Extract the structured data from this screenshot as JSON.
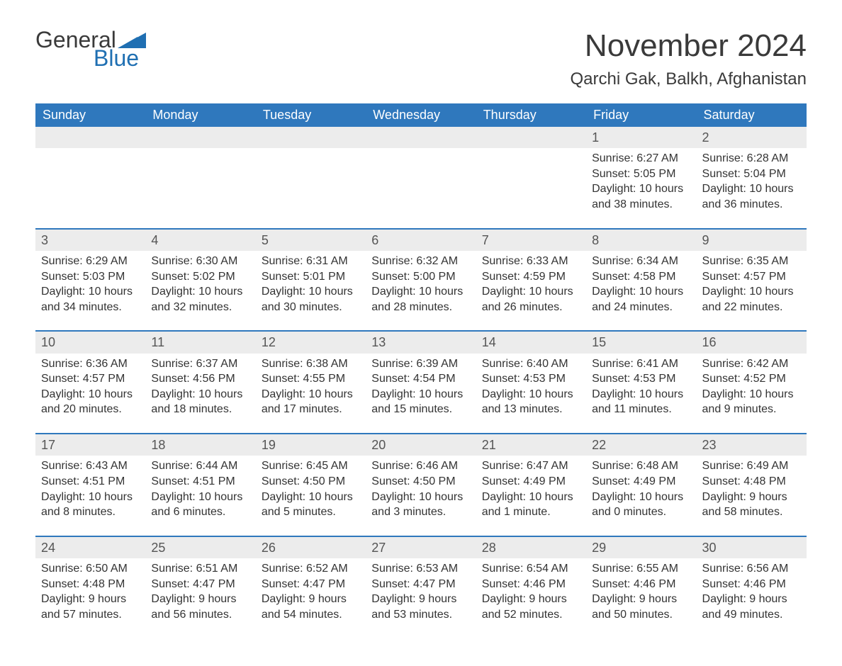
{
  "brand": {
    "part1": "General",
    "part2": "Blue",
    "flag_color": "#1f6fb2"
  },
  "title": "November 2024",
  "location": "Qarchi Gak, Balkh, Afghanistan",
  "colors": {
    "header_bg": "#2f78bd",
    "header_text": "#ffffff",
    "daynum_bg": "#ececec",
    "row_divider": "#2f78bd",
    "body_text": "#333333",
    "brand_blue": "#1f6fb2"
  },
  "typography": {
    "title_fontsize": 44,
    "location_fontsize": 24,
    "header_fontsize": 18,
    "cell_fontsize": 16
  },
  "weekdays": [
    "Sunday",
    "Monday",
    "Tuesday",
    "Wednesday",
    "Thursday",
    "Friday",
    "Saturday"
  ],
  "weeks": [
    [
      null,
      null,
      null,
      null,
      null,
      {
        "day": "1",
        "sunrise": "Sunrise: 6:27 AM",
        "sunset": "Sunset: 5:05 PM",
        "daylight1": "Daylight: 10 hours",
        "daylight2": "and 38 minutes."
      },
      {
        "day": "2",
        "sunrise": "Sunrise: 6:28 AM",
        "sunset": "Sunset: 5:04 PM",
        "daylight1": "Daylight: 10 hours",
        "daylight2": "and 36 minutes."
      }
    ],
    [
      {
        "day": "3",
        "sunrise": "Sunrise: 6:29 AM",
        "sunset": "Sunset: 5:03 PM",
        "daylight1": "Daylight: 10 hours",
        "daylight2": "and 34 minutes."
      },
      {
        "day": "4",
        "sunrise": "Sunrise: 6:30 AM",
        "sunset": "Sunset: 5:02 PM",
        "daylight1": "Daylight: 10 hours",
        "daylight2": "and 32 minutes."
      },
      {
        "day": "5",
        "sunrise": "Sunrise: 6:31 AM",
        "sunset": "Sunset: 5:01 PM",
        "daylight1": "Daylight: 10 hours",
        "daylight2": "and 30 minutes."
      },
      {
        "day": "6",
        "sunrise": "Sunrise: 6:32 AM",
        "sunset": "Sunset: 5:00 PM",
        "daylight1": "Daylight: 10 hours",
        "daylight2": "and 28 minutes."
      },
      {
        "day": "7",
        "sunrise": "Sunrise: 6:33 AM",
        "sunset": "Sunset: 4:59 PM",
        "daylight1": "Daylight: 10 hours",
        "daylight2": "and 26 minutes."
      },
      {
        "day": "8",
        "sunrise": "Sunrise: 6:34 AM",
        "sunset": "Sunset: 4:58 PM",
        "daylight1": "Daylight: 10 hours",
        "daylight2": "and 24 minutes."
      },
      {
        "day": "9",
        "sunrise": "Sunrise: 6:35 AM",
        "sunset": "Sunset: 4:57 PM",
        "daylight1": "Daylight: 10 hours",
        "daylight2": "and 22 minutes."
      }
    ],
    [
      {
        "day": "10",
        "sunrise": "Sunrise: 6:36 AM",
        "sunset": "Sunset: 4:57 PM",
        "daylight1": "Daylight: 10 hours",
        "daylight2": "and 20 minutes."
      },
      {
        "day": "11",
        "sunrise": "Sunrise: 6:37 AM",
        "sunset": "Sunset: 4:56 PM",
        "daylight1": "Daylight: 10 hours",
        "daylight2": "and 18 minutes."
      },
      {
        "day": "12",
        "sunrise": "Sunrise: 6:38 AM",
        "sunset": "Sunset: 4:55 PM",
        "daylight1": "Daylight: 10 hours",
        "daylight2": "and 17 minutes."
      },
      {
        "day": "13",
        "sunrise": "Sunrise: 6:39 AM",
        "sunset": "Sunset: 4:54 PM",
        "daylight1": "Daylight: 10 hours",
        "daylight2": "and 15 minutes."
      },
      {
        "day": "14",
        "sunrise": "Sunrise: 6:40 AM",
        "sunset": "Sunset: 4:53 PM",
        "daylight1": "Daylight: 10 hours",
        "daylight2": "and 13 minutes."
      },
      {
        "day": "15",
        "sunrise": "Sunrise: 6:41 AM",
        "sunset": "Sunset: 4:53 PM",
        "daylight1": "Daylight: 10 hours",
        "daylight2": "and 11 minutes."
      },
      {
        "day": "16",
        "sunrise": "Sunrise: 6:42 AM",
        "sunset": "Sunset: 4:52 PM",
        "daylight1": "Daylight: 10 hours",
        "daylight2": "and 9 minutes."
      }
    ],
    [
      {
        "day": "17",
        "sunrise": "Sunrise: 6:43 AM",
        "sunset": "Sunset: 4:51 PM",
        "daylight1": "Daylight: 10 hours",
        "daylight2": "and 8 minutes."
      },
      {
        "day": "18",
        "sunrise": "Sunrise: 6:44 AM",
        "sunset": "Sunset: 4:51 PM",
        "daylight1": "Daylight: 10 hours",
        "daylight2": "and 6 minutes."
      },
      {
        "day": "19",
        "sunrise": "Sunrise: 6:45 AM",
        "sunset": "Sunset: 4:50 PM",
        "daylight1": "Daylight: 10 hours",
        "daylight2": "and 5 minutes."
      },
      {
        "day": "20",
        "sunrise": "Sunrise: 6:46 AM",
        "sunset": "Sunset: 4:50 PM",
        "daylight1": "Daylight: 10 hours",
        "daylight2": "and 3 minutes."
      },
      {
        "day": "21",
        "sunrise": "Sunrise: 6:47 AM",
        "sunset": "Sunset: 4:49 PM",
        "daylight1": "Daylight: 10 hours",
        "daylight2": "and 1 minute."
      },
      {
        "day": "22",
        "sunrise": "Sunrise: 6:48 AM",
        "sunset": "Sunset: 4:49 PM",
        "daylight1": "Daylight: 10 hours",
        "daylight2": "and 0 minutes."
      },
      {
        "day": "23",
        "sunrise": "Sunrise: 6:49 AM",
        "sunset": "Sunset: 4:48 PM",
        "daylight1": "Daylight: 9 hours",
        "daylight2": "and 58 minutes."
      }
    ],
    [
      {
        "day": "24",
        "sunrise": "Sunrise: 6:50 AM",
        "sunset": "Sunset: 4:48 PM",
        "daylight1": "Daylight: 9 hours",
        "daylight2": "and 57 minutes."
      },
      {
        "day": "25",
        "sunrise": "Sunrise: 6:51 AM",
        "sunset": "Sunset: 4:47 PM",
        "daylight1": "Daylight: 9 hours",
        "daylight2": "and 56 minutes."
      },
      {
        "day": "26",
        "sunrise": "Sunrise: 6:52 AM",
        "sunset": "Sunset: 4:47 PM",
        "daylight1": "Daylight: 9 hours",
        "daylight2": "and 54 minutes."
      },
      {
        "day": "27",
        "sunrise": "Sunrise: 6:53 AM",
        "sunset": "Sunset: 4:47 PM",
        "daylight1": "Daylight: 9 hours",
        "daylight2": "and 53 minutes."
      },
      {
        "day": "28",
        "sunrise": "Sunrise: 6:54 AM",
        "sunset": "Sunset: 4:46 PM",
        "daylight1": "Daylight: 9 hours",
        "daylight2": "and 52 minutes."
      },
      {
        "day": "29",
        "sunrise": "Sunrise: 6:55 AM",
        "sunset": "Sunset: 4:46 PM",
        "daylight1": "Daylight: 9 hours",
        "daylight2": "and 50 minutes."
      },
      {
        "day": "30",
        "sunrise": "Sunrise: 6:56 AM",
        "sunset": "Sunset: 4:46 PM",
        "daylight1": "Daylight: 9 hours",
        "daylight2": "and 49 minutes."
      }
    ]
  ]
}
